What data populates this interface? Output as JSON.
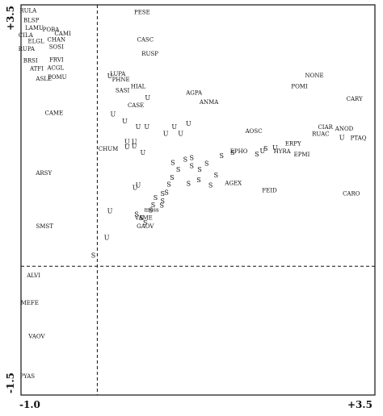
{
  "chart_data": {
    "type": "scatter",
    "title": "",
    "xlabel": "",
    "ylabel": "",
    "xlim": [
      -1.0,
      3.5
    ],
    "ylim": [
      -1.5,
      3.5
    ],
    "x_tick_labels": [
      "-1.0",
      "+3.5"
    ],
    "y_tick_labels": [
      "-1.5",
      "+3.5"
    ],
    "reference_lines": {
      "x": -0.03,
      "y": 0.15
    },
    "grid": false,
    "legend": "none",
    "labeled_points": [
      {
        "label": "RULA",
        "x": -0.91,
        "y": 3.42
      },
      {
        "label": "BLSP",
        "x": -0.87,
        "y": 3.3
      },
      {
        "label": "LAMU",
        "x": -0.83,
        "y": 3.2
      },
      {
        "label": "POBA",
        "x": -0.62,
        "y": 3.18
      },
      {
        "label": "CILA",
        "x": -0.94,
        "y": 3.11
      },
      {
        "label": "CAMI",
        "x": -0.47,
        "y": 3.13
      },
      {
        "label": "ELGL",
        "x": -0.81,
        "y": 3.03
      },
      {
        "label": "CHAN",
        "x": -0.55,
        "y": 3.05
      },
      {
        "label": "SOSI",
        "x": -0.55,
        "y": 2.96
      },
      {
        "label": "RUPA",
        "x": -0.93,
        "y": 2.93
      },
      {
        "label": "BRSI",
        "x": -0.88,
        "y": 2.78
      },
      {
        "label": "FRVI",
        "x": -0.55,
        "y": 2.79
      },
      {
        "label": "ATFI",
        "x": -0.8,
        "y": 2.68
      },
      {
        "label": "ACGL",
        "x": -0.56,
        "y": 2.69
      },
      {
        "label": "POMU",
        "x": -0.54,
        "y": 2.57
      },
      {
        "label": "ASLE",
        "x": -0.71,
        "y": 2.55
      },
      {
        "label": "CAME",
        "x": -0.58,
        "y": 2.11
      },
      {
        "label": "ARSY",
        "x": -0.71,
        "y": 1.34
      },
      {
        "label": "SMST",
        "x": -0.7,
        "y": 0.66
      },
      {
        "label": "ALVI",
        "x": -0.84,
        "y": 0.03
      },
      {
        "label": "MEFE",
        "x": -0.89,
        "y": -0.32
      },
      {
        "label": "VAOV",
        "x": -0.8,
        "y": -0.75
      },
      {
        "label": "PYAS",
        "x": -0.92,
        "y": -1.26
      },
      {
        "label": "PESE",
        "x": 0.54,
        "y": 3.4
      },
      {
        "label": "CASC",
        "x": 0.58,
        "y": 3.05
      },
      {
        "label": "RUSP",
        "x": 0.64,
        "y": 2.87
      },
      {
        "label": "LUPA",
        "x": 0.23,
        "y": 2.61
      },
      {
        "label": "PHNE",
        "x": 0.27,
        "y": 2.54
      },
      {
        "label": "HIAL",
        "x": 0.49,
        "y": 2.45
      },
      {
        "label": "SASI",
        "x": 0.29,
        "y": 2.4
      },
      {
        "label": "CASE",
        "x": 0.46,
        "y": 2.21
      },
      {
        "label": "CHUM",
        "x": 0.11,
        "y": 1.65
      },
      {
        "label": "AGPA",
        "x": 1.2,
        "y": 2.37
      },
      {
        "label": "ANMA",
        "x": 1.39,
        "y": 2.25
      },
      {
        "label": "NONE",
        "x": 2.73,
        "y": 2.59
      },
      {
        "label": "POMI",
        "x": 2.54,
        "y": 2.45
      },
      {
        "label": "CARY",
        "x": 3.24,
        "y": 2.29
      },
      {
        "label": "AOSC",
        "x": 1.96,
        "y": 1.88
      },
      {
        "label": "CIAR",
        "x": 2.87,
        "y": 1.93
      },
      {
        "label": "ANOD",
        "x": 3.11,
        "y": 1.91
      },
      {
        "label": "RUAC",
        "x": 2.81,
        "y": 1.84
      },
      {
        "label": "PTAQ",
        "x": 3.29,
        "y": 1.79
      },
      {
        "label": "ERPY",
        "x": 2.46,
        "y": 1.72
      },
      {
        "label": "HYRA",
        "x": 2.32,
        "y": 1.62
      },
      {
        "label": "EPHO",
        "x": 1.77,
        "y": 1.62
      },
      {
        "label": "EPMI",
        "x": 2.57,
        "y": 1.58
      },
      {
        "label": "AGEX",
        "x": 1.7,
        "y": 1.21
      },
      {
        "label": "FEID",
        "x": 2.16,
        "y": 1.12
      },
      {
        "label": "CARO",
        "x": 3.2,
        "y": 1.08
      },
      {
        "label": "moss",
        "x": 0.66,
        "y": 0.87
      },
      {
        "label": "VAME",
        "x": 0.56,
        "y": 0.77
      },
      {
        "label": "GAOV",
        "x": 0.58,
        "y": 0.66
      }
    ],
    "marker_points": [
      {
        "symbol": "U",
        "x": 0.13,
        "y": 2.58
      },
      {
        "symbol": "U",
        "x": 0.61,
        "y": 2.3
      },
      {
        "symbol": "U",
        "x": 0.17,
        "y": 2.09
      },
      {
        "symbol": "U",
        "x": 0.32,
        "y": 2.0
      },
      {
        "symbol": "U",
        "x": 0.49,
        "y": 1.93
      },
      {
        "symbol": "U",
        "x": 0.6,
        "y": 1.93
      },
      {
        "symbol": "U",
        "x": 0.95,
        "y": 1.93
      },
      {
        "symbol": "U",
        "x": 1.13,
        "y": 1.97
      },
      {
        "symbol": "U",
        "x": 0.84,
        "y": 1.84
      },
      {
        "symbol": "U",
        "x": 1.03,
        "y": 1.84
      },
      {
        "symbol": "U",
        "x": 0.35,
        "y": 1.74
      },
      {
        "symbol": "U",
        "x": 0.44,
        "y": 1.74
      },
      {
        "symbol": "U",
        "x": 0.35,
        "y": 1.67
      },
      {
        "symbol": "U",
        "x": 0.44,
        "y": 1.68
      },
      {
        "symbol": "U",
        "x": 0.55,
        "y": 1.6
      },
      {
        "symbol": "U",
        "x": 0.45,
        "y": 1.15
      },
      {
        "symbol": "U",
        "x": 0.49,
        "y": 1.18
      },
      {
        "symbol": "U",
        "x": 0.13,
        "y": 0.85
      },
      {
        "symbol": "U",
        "x": 0.09,
        "y": 0.51
      },
      {
        "symbol": "U",
        "x": 2.07,
        "y": 1.62
      },
      {
        "symbol": "U",
        "x": 2.23,
        "y": 1.66
      },
      {
        "symbol": "U",
        "x": 3.08,
        "y": 1.79
      },
      {
        "symbol": "S",
        "x": -0.08,
        "y": 0.28
      },
      {
        "symbol": "S",
        "x": 0.93,
        "y": 1.47
      },
      {
        "symbol": "S",
        "x": 1.0,
        "y": 1.38
      },
      {
        "symbol": "S",
        "x": 1.09,
        "y": 1.51
      },
      {
        "symbol": "S",
        "x": 1.17,
        "y": 1.53
      },
      {
        "symbol": "S",
        "x": 1.17,
        "y": 1.43
      },
      {
        "symbol": "S",
        "x": 1.27,
        "y": 1.38
      },
      {
        "symbol": "S",
        "x": 1.36,
        "y": 1.46
      },
      {
        "symbol": "S",
        "x": 1.55,
        "y": 1.56
      },
      {
        "symbol": "S",
        "x": 1.48,
        "y": 1.31
      },
      {
        "symbol": "S",
        "x": 1.26,
        "y": 1.25
      },
      {
        "symbol": "S",
        "x": 1.13,
        "y": 1.2
      },
      {
        "symbol": "S",
        "x": 1.41,
        "y": 1.18
      },
      {
        "symbol": "S",
        "x": 0.92,
        "y": 1.28
      },
      {
        "symbol": "S",
        "x": 0.88,
        "y": 1.19
      },
      {
        "symbol": "S",
        "x": 0.85,
        "y": 1.09
      },
      {
        "symbol": "S",
        "x": 0.8,
        "y": 1.07
      },
      {
        "symbol": "S",
        "x": 0.71,
        "y": 1.02
      },
      {
        "symbol": "S",
        "x": 0.8,
        "y": 0.98
      },
      {
        "symbol": "S",
        "x": 0.68,
        "y": 0.93
      },
      {
        "symbol": "S",
        "x": 0.79,
        "y": 0.92
      },
      {
        "symbol": "S",
        "x": 0.65,
        "y": 0.86
      },
      {
        "symbol": "S",
        "x": 0.47,
        "y": 0.81
      },
      {
        "symbol": "S",
        "x": 0.53,
        "y": 0.76
      },
      {
        "symbol": "S",
        "x": 0.58,
        "y": 0.7
      },
      {
        "symbol": "S",
        "x": 1.69,
        "y": 1.6
      },
      {
        "symbol": "S",
        "x": 2.0,
        "y": 1.58
      },
      {
        "symbol": "S",
        "x": 2.11,
        "y": 1.65
      }
    ]
  }
}
